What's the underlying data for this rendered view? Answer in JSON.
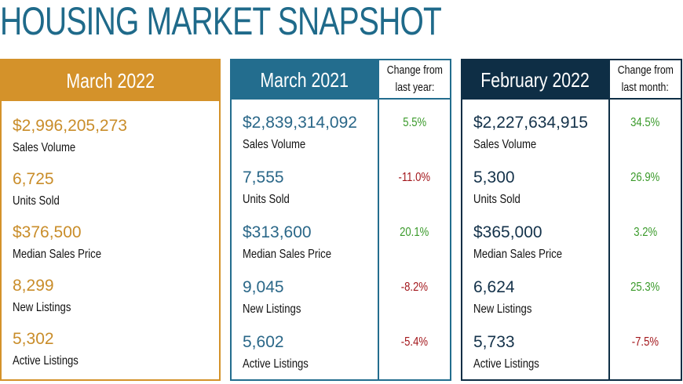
{
  "header": {
    "title": "HOUSING MARKET SNAPSHOT"
  },
  "panels": [
    {
      "title": "March 2022",
      "metrics": [
        {
          "value": "$2,996,205,273",
          "label": "Sales Volume"
        },
        {
          "value": "6,725",
          "label": "Units Sold"
        },
        {
          "value": "$376,500",
          "label": "Median Sales Price"
        },
        {
          "value": "8,299",
          "label": "New Listings"
        },
        {
          "value": "5,302",
          "label": "Active Listings"
        }
      ]
    },
    {
      "title": "March 2021",
      "change_header": [
        "Change from",
        "last year:"
      ],
      "metrics": [
        {
          "value": "$2,839,314,092",
          "label": "Sales Volume",
          "change": "5.5%"
        },
        {
          "value": "7,555",
          "label": "Units Sold",
          "change": "-11.0%"
        },
        {
          "value": "$313,600",
          "label": "Median Sales Price",
          "change": "20.1%"
        },
        {
          "value": "9,045",
          "label": "New Listings",
          "change": "-8.2%"
        },
        {
          "value": "5,602",
          "label": "Active Listings",
          "change": "-5.4%"
        }
      ]
    },
    {
      "title": "February 2022",
      "change_header": [
        "Change from",
        "last month:"
      ],
      "metrics": [
        {
          "value": "$2,227,634,915",
          "label": "Sales Volume",
          "change": "34.5%"
        },
        {
          "value": "5,300",
          "label": "Units Sold",
          "change": "26.9%"
        },
        {
          "value": "$365,000",
          "label": "Median Sales Price",
          "change": "3.2%"
        },
        {
          "value": "6,624",
          "label": "New Listings",
          "change": "25.3%"
        },
        {
          "value": "5,733",
          "label": "Active Listings",
          "change": "-7.5%"
        }
      ]
    }
  ]
}
